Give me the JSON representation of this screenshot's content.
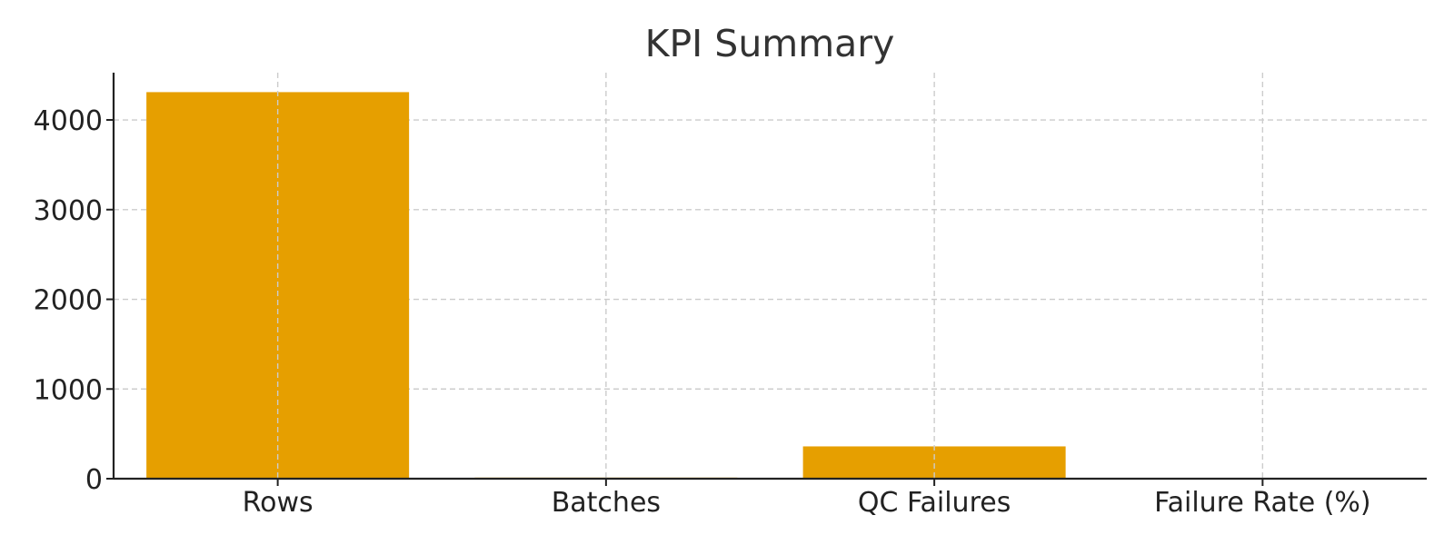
{
  "chart_data": {
    "type": "bar",
    "title": "KPI Summary",
    "xlabel": "",
    "ylabel": "",
    "categories": [
      "Rows",
      "Batches",
      "QC Failures",
      "Failure Rate (%)"
    ],
    "values": [
      4310,
      12,
      360,
      8.4
    ],
    "ylim": [
      0,
      4527
    ],
    "yticks": [
      0,
      1000,
      2000,
      3000,
      4000
    ],
    "grid": true,
    "legend": "none",
    "bar_color": "#E69F00"
  }
}
